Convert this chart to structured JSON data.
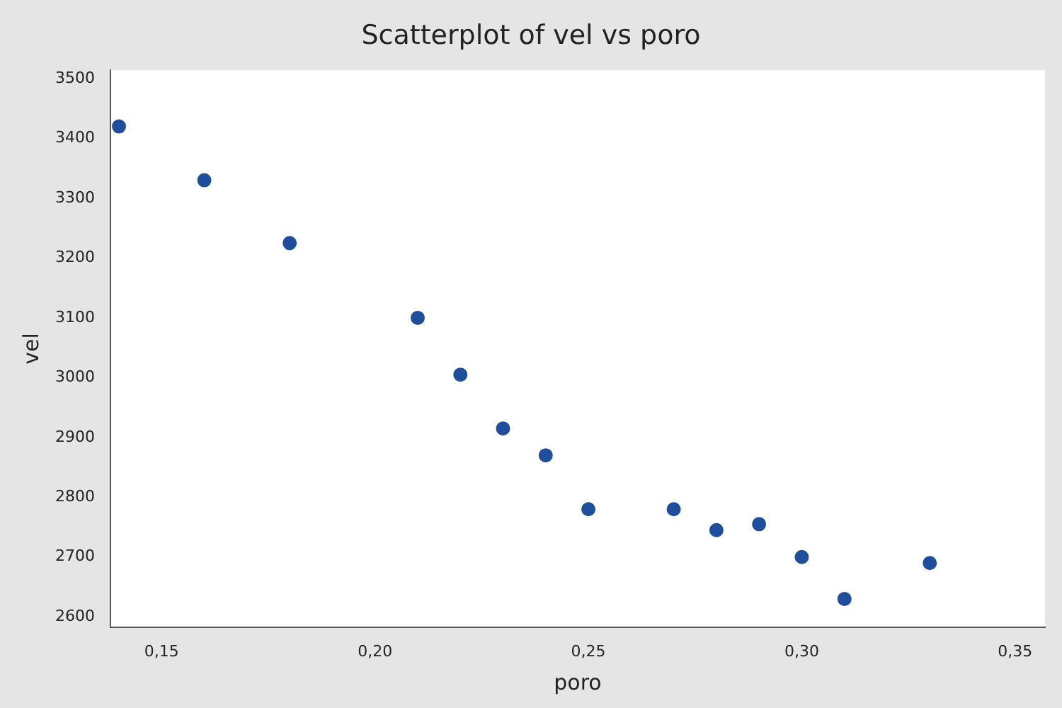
{
  "chart_data": {
    "type": "scatter",
    "title": "Scatterplot of vel vs poro",
    "xlabel": "poro",
    "ylabel": "vel",
    "x": [
      0.14,
      0.16,
      0.18,
      0.21,
      0.22,
      0.23,
      0.24,
      0.25,
      0.27,
      0.28,
      0.29,
      0.3,
      0.31,
      0.33
    ],
    "values": [
      3420,
      3330,
      3225,
      3100,
      3005,
      2915,
      2870,
      2780,
      2780,
      2745,
      2755,
      2700,
      2630,
      2690
    ],
    "color": "#1f4f9c",
    "marker": "circle",
    "xlim": [
      0.138,
      0.357
    ],
    "xticks": [
      {
        "value": 0.15,
        "label": "0,15"
      },
      {
        "value": 0.2,
        "label": "0,20"
      },
      {
        "value": 0.25,
        "label": "0,25"
      },
      {
        "value": 0.3,
        "label": "0,30"
      },
      {
        "value": 0.35,
        "label": "0,35"
      }
    ],
    "ylim": [
      2583,
      3514
    ],
    "yticks": [
      2600,
      2700,
      2800,
      2900,
      3000,
      3100,
      3200,
      3300,
      3400,
      3500
    ],
    "grid": false,
    "legend": false
  }
}
